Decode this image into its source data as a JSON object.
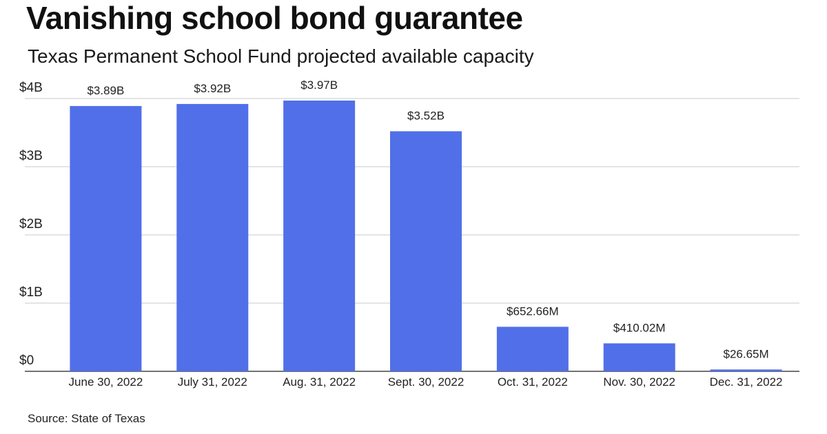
{
  "title": "Vanishing school bond guarantee",
  "subtitle": "Texas Permanent School Fund projected available capacity",
  "source": "Source: State of Texas",
  "colors": {
    "bar": "#516fe8",
    "grid": "#c8c8c8",
    "axis": "#444444",
    "text": "#222222"
  },
  "chart_data": {
    "type": "bar",
    "categories": [
      "June 30, 2022",
      "July 31, 2022",
      "Aug. 31, 2022",
      "Sept. 30, 2022",
      "Oct. 31, 2022",
      "Nov. 30, 2022",
      "Dec. 31, 2022"
    ],
    "values": [
      3.89,
      3.92,
      3.97,
      3.52,
      0.65266,
      0.41002,
      0.02665
    ],
    "value_unit": "billions of dollars",
    "data_labels": [
      "$3.89B",
      "$3.92B",
      "$3.97B",
      "$3.52B",
      "$652.66M",
      "$410.02M",
      "$26.65M"
    ],
    "y_ticks": [
      0,
      1,
      2,
      3,
      4
    ],
    "y_tick_labels": [
      "$0",
      "$1B",
      "$2B",
      "$3B",
      "$4B"
    ],
    "ylim": [
      0,
      4
    ],
    "grid": true,
    "legend": "none"
  }
}
